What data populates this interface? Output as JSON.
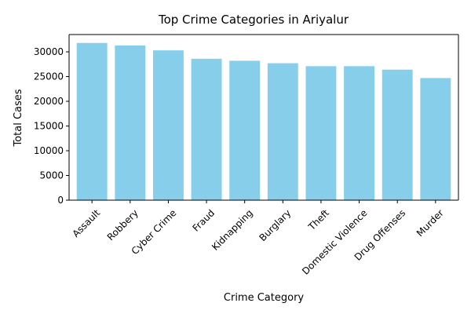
{
  "chart_data": {
    "type": "bar",
    "title": "Top Crime Categories in Ariyalur",
    "xlabel": "Crime Category",
    "ylabel": "Total Cases",
    "categories": [
      "Assault",
      "Robbery",
      "Cyber Crime",
      "Fraud",
      "Kidnapping",
      "Burglary",
      "Theft",
      "Domestic Violence",
      "Drug Offenses",
      "Murder"
    ],
    "values": [
      31800,
      31300,
      30300,
      28600,
      28200,
      27700,
      27100,
      27100,
      26400,
      24700
    ],
    "ylim": [
      0,
      33500
    ],
    "yticks": [
      0,
      5000,
      10000,
      15000,
      20000,
      25000,
      30000
    ],
    "bar_color": "#87ceeb",
    "grid": false,
    "legend": "none"
  }
}
